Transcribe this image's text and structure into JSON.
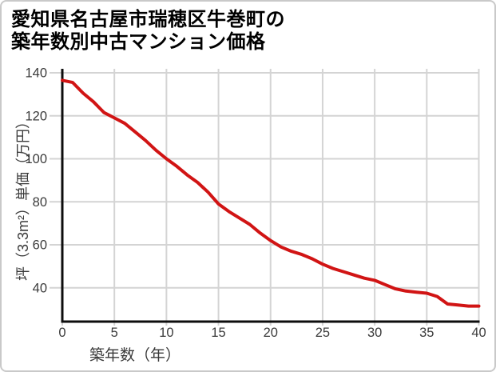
{
  "title": {
    "line1": "愛知県名古屋市瑞穂区牛巻町の",
    "line2": "築年数別中古マンション価格"
  },
  "chart_data": {
    "type": "line",
    "title": "愛知県名古屋市瑞穂区牛巻町の築年数別中古マンション価格",
    "xlabel": "築年数（年）",
    "ylabel": "坪（3.3m²）単価（万円）",
    "x": [
      0,
      1,
      2,
      3,
      4,
      5,
      6,
      7,
      8,
      9,
      10,
      11,
      12,
      13,
      14,
      15,
      16,
      17,
      18,
      19,
      20,
      21,
      22,
      23,
      24,
      25,
      26,
      27,
      28,
      29,
      30,
      31,
      32,
      33,
      34,
      35,
      36,
      37,
      38,
      39,
      40
    ],
    "series": [
      {
        "name": "坪単価（万円）",
        "values": [
          136.5,
          135.5,
          130.5,
          126.5,
          121.5,
          119,
          116.5,
          112.5,
          108.5,
          104,
          100,
          96.5,
          92.5,
          89,
          84.5,
          79,
          75.5,
          72.5,
          69.5,
          65.5,
          62,
          59,
          57,
          55.5,
          53.5,
          51,
          49,
          47.5,
          46,
          44.5,
          43.5,
          41.5,
          39.5,
          38.5,
          38,
          37.5,
          36,
          32.5,
          32,
          31.5,
          31.5
        ]
      }
    ],
    "xlim": [
      0,
      40
    ],
    "ylim": [
      24.3,
      140
    ],
    "xticks": [
      0,
      5,
      10,
      15,
      20,
      25,
      30,
      35,
      40
    ],
    "yticks": [
      40,
      60,
      80,
      100,
      120,
      140
    ],
    "grid": true,
    "legend": "none",
    "line_color": "#d11414",
    "colors": {
      "axis": "#0d0d0d",
      "grid": "#d4d4d4",
      "tick_label": "#3b3b3b",
      "axis_label": "#3a3a3a",
      "border": "#c9c9c9",
      "background": "#ffffff"
    }
  }
}
